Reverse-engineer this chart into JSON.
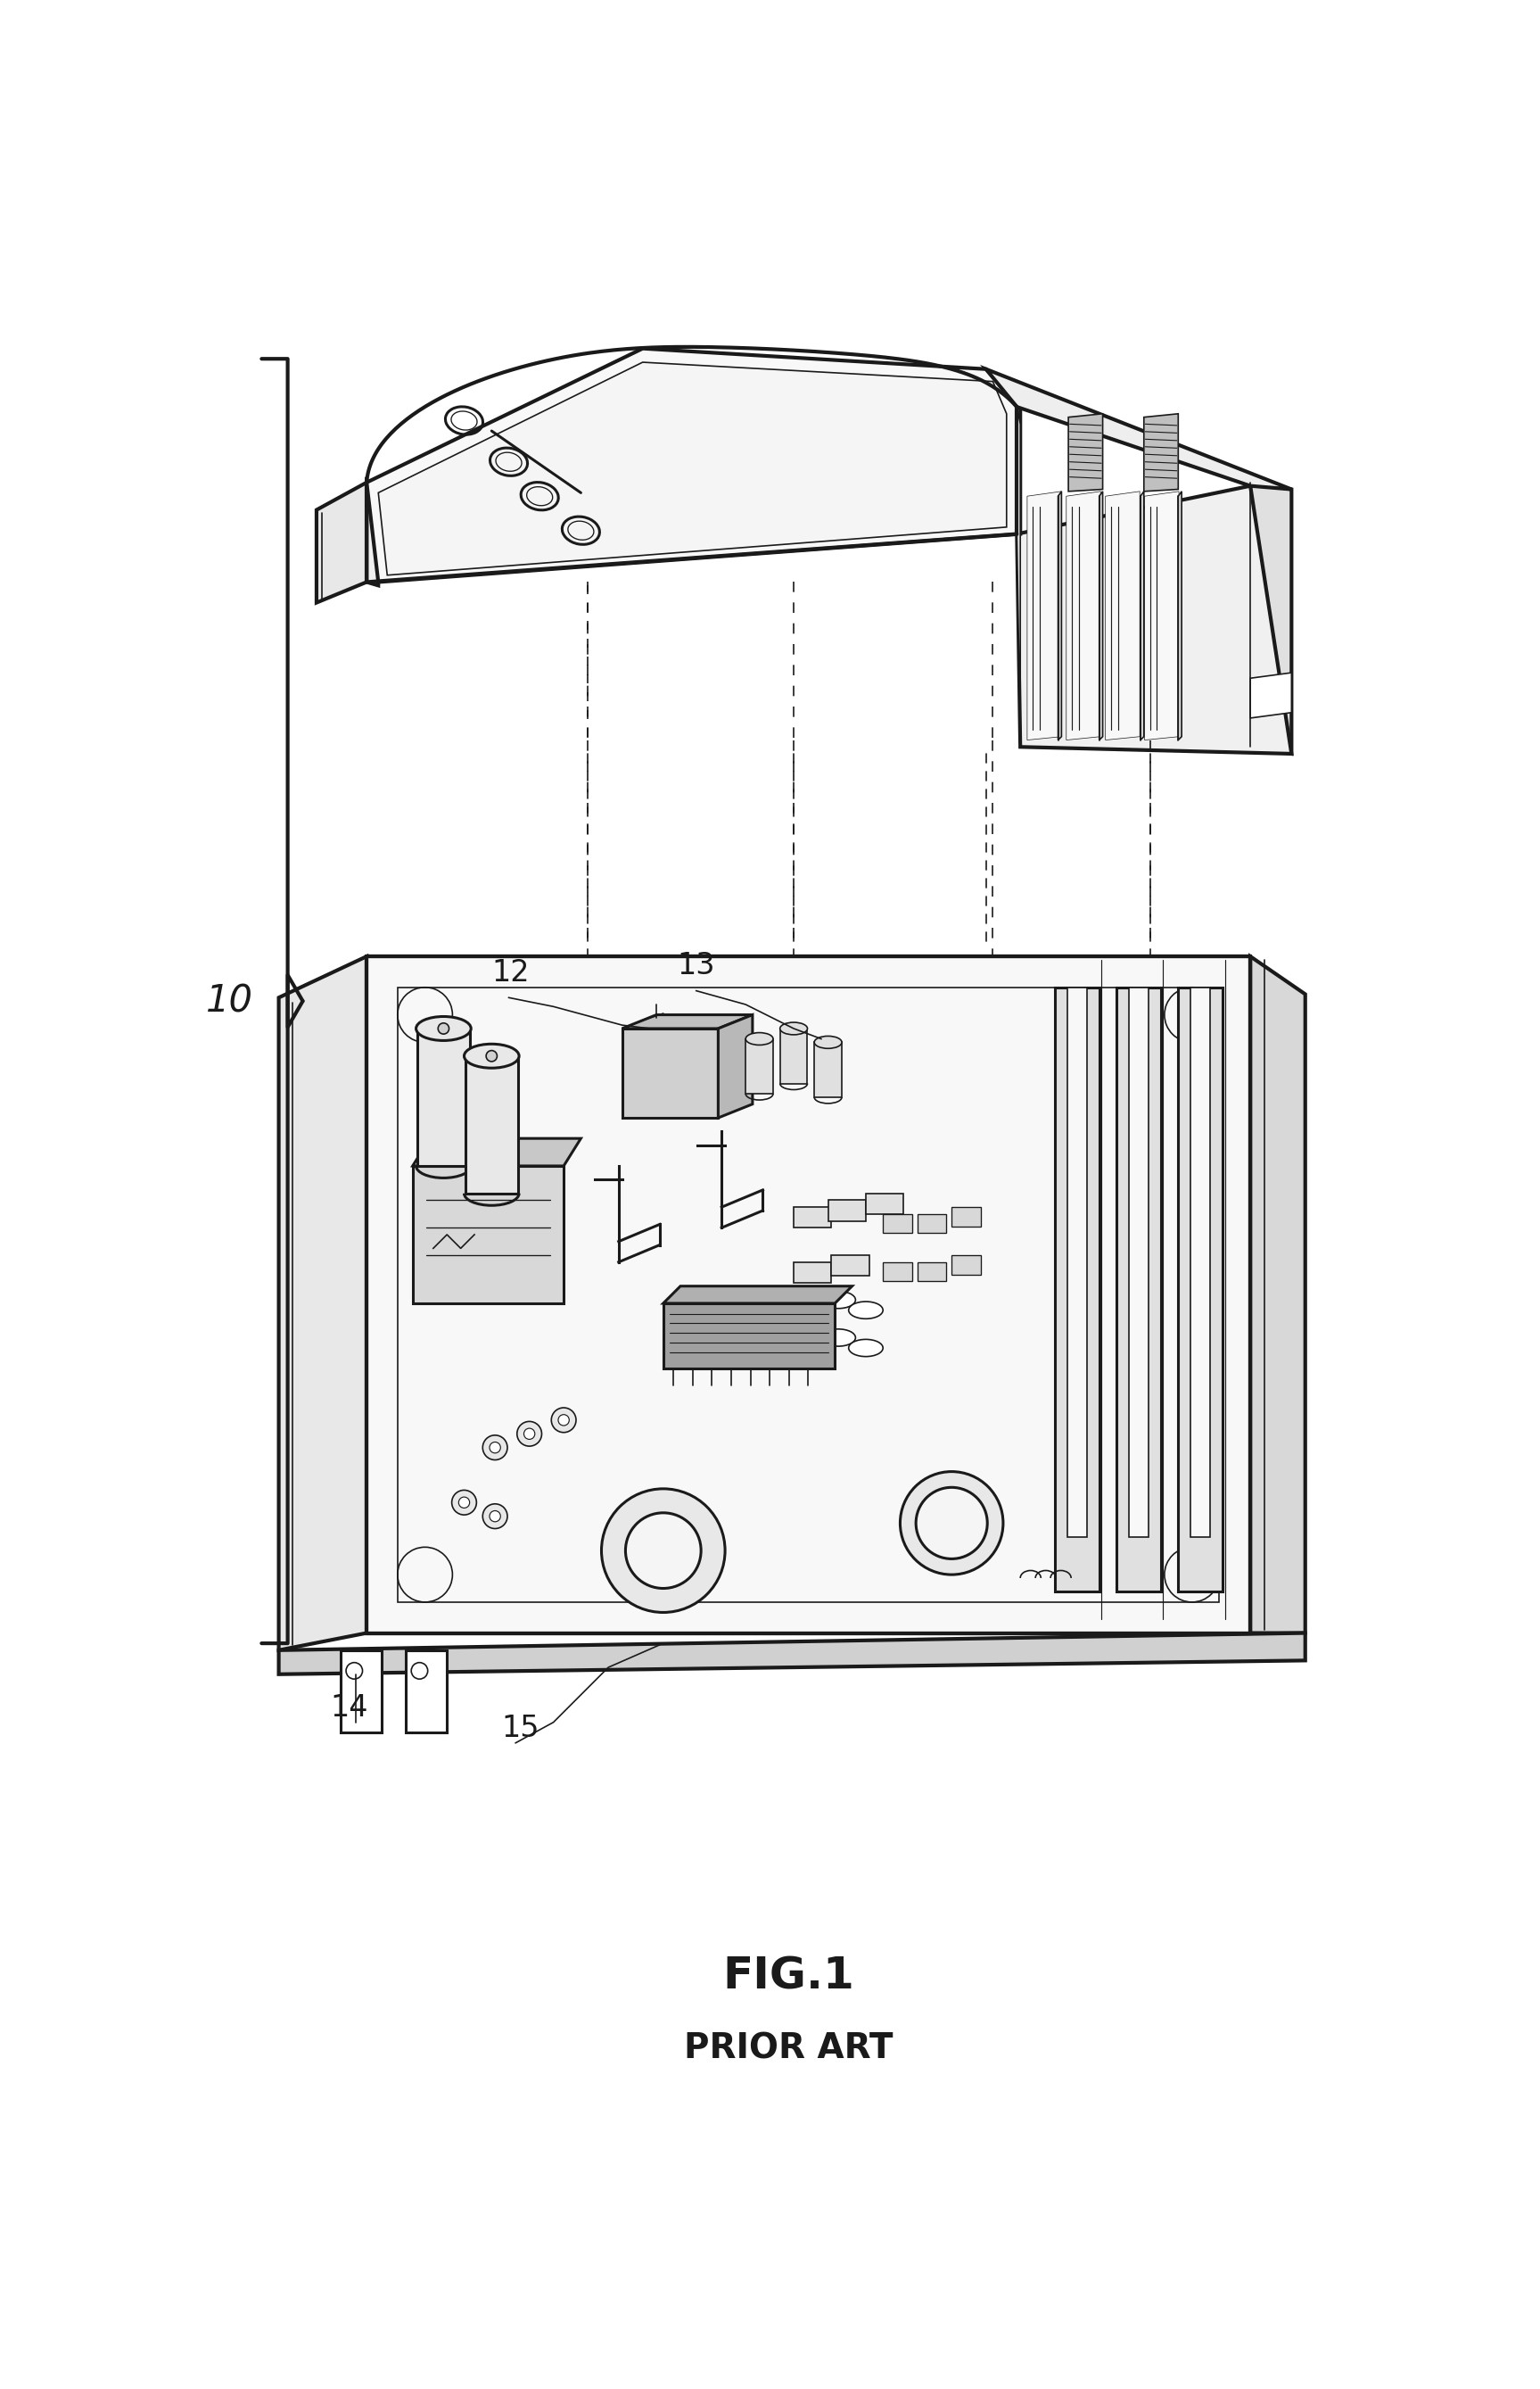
{
  "fig_label": "FIG.1",
  "prior_art_label": "PRIOR ART",
  "label_10": "10",
  "label_12": "12",
  "label_13": "13",
  "label_14": "14",
  "label_15": "15",
  "background_color": "#ffffff",
  "line_color": "#1a1a1a",
  "lw_main": 2.2,
  "lw_thick": 3.0,
  "lw_thin": 1.2,
  "fig_fontsize": 36,
  "label_fontsize": 24,
  "prior_art_fontsize": 28
}
